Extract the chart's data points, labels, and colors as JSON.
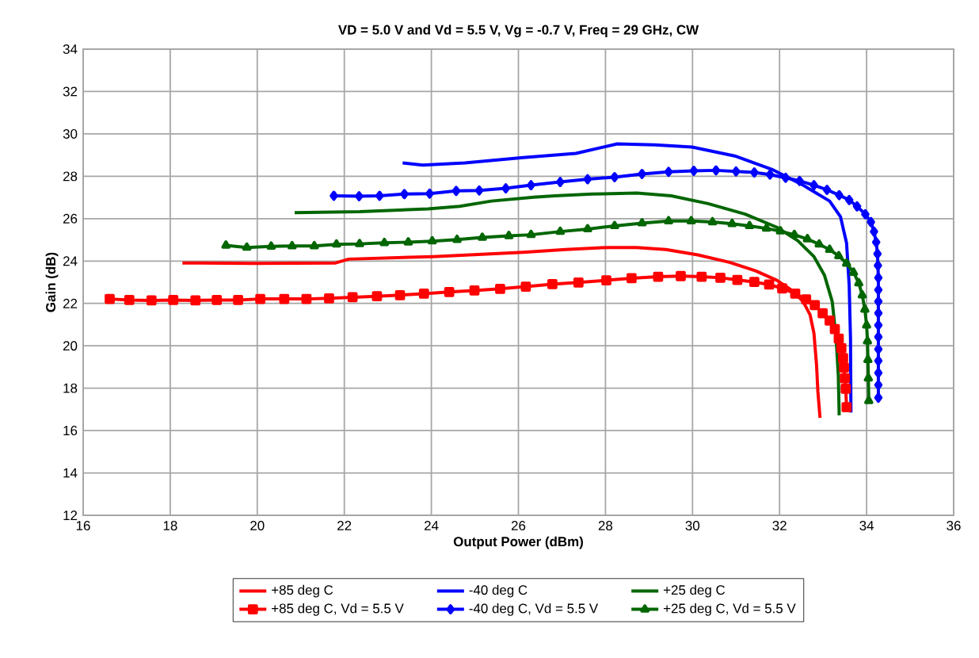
{
  "chart_data": {
    "type": "line",
    "title": "VD = 5.0 V and Vd = 5.5 V, Vg = -0.7 V, Freq = 29 GHz, CW",
    "xlabel": "Output Power (dBm)",
    "ylabel": "Gain (dB)",
    "xlim": [
      16,
      36
    ],
    "ylim": [
      12,
      34
    ],
    "xticks": [
      16,
      18,
      20,
      22,
      24,
      26,
      28,
      30,
      32,
      34,
      36
    ],
    "yticks": [
      12,
      14,
      16,
      18,
      20,
      22,
      24,
      26,
      28,
      30,
      32,
      34
    ],
    "grid": true,
    "legend": "bottom",
    "line_style": "solid",
    "series": [
      {
        "name": "+85 deg C",
        "color": "#ff0000",
        "marker": "none",
        "x": [
          18.28,
          19.92,
          21.8,
          22.1,
          24.04,
          26.11,
          27.08,
          28.05,
          28.72,
          29.39,
          30.12,
          30.85,
          31.45,
          31.94,
          32.3,
          32.54,
          32.7,
          32.79,
          32.85,
          32.88,
          32.93
        ],
        "values": [
          23.91,
          23.89,
          23.91,
          24.09,
          24.21,
          24.41,
          24.54,
          24.64,
          24.64,
          24.54,
          24.29,
          23.94,
          23.54,
          23.09,
          22.59,
          22.09,
          21.47,
          20.59,
          19.09,
          17.85,
          16.6
        ]
      },
      {
        "name": "-40 deg C",
        "color": "#0000ff",
        "marker": "none",
        "x": [
          23.34,
          23.8,
          24.77,
          26.11,
          27.32,
          28.27,
          29.14,
          29.99,
          30.97,
          31.82,
          32.54,
          33.15,
          33.4,
          33.54,
          33.6,
          33.63,
          33.64
        ],
        "values": [
          28.63,
          28.53,
          28.63,
          28.88,
          29.08,
          29.53,
          29.48,
          29.38,
          28.96,
          28.33,
          27.58,
          26.83,
          26.09,
          24.84,
          22.84,
          20.34,
          16.85
        ]
      },
      {
        "name": "+25 deg C",
        "color": "#006600",
        "marker": "none",
        "x": [
          20.86,
          22.35,
          23.92,
          24.65,
          25.38,
          26.35,
          26.84,
          27.69,
          28.72,
          29.51,
          30.36,
          31.21,
          31.94,
          32.42,
          32.79,
          33.03,
          33.21,
          33.3,
          33.35,
          33.37
        ],
        "values": [
          26.28,
          26.33,
          26.46,
          26.58,
          26.83,
          27.01,
          27.08,
          27.16,
          27.21,
          27.08,
          26.71,
          26.21,
          25.59,
          24.96,
          24.21,
          23.34,
          22.09,
          20.34,
          18.6,
          16.72
        ]
      },
      {
        "name": "+85 deg C, Vd = 5.5 V",
        "color": "#ff0000",
        "marker": "square",
        "x": [
          16.61,
          17.06,
          17.57,
          18.07,
          18.58,
          19.07,
          19.56,
          20.07,
          20.62,
          21.13,
          21.65,
          22.19,
          22.75,
          23.28,
          23.83,
          24.41,
          24.99,
          25.58,
          26.17,
          26.78,
          27.38,
          28.02,
          28.6,
          29.21,
          29.73,
          30.21,
          30.64,
          31.03,
          31.42,
          31.76,
          32.06,
          32.36,
          32.61,
          32.81,
          32.99,
          33.15,
          33.27,
          33.36,
          33.42,
          33.46,
          33.48,
          33.5,
          33.52,
          33.54
        ],
        "values": [
          22.21,
          22.16,
          22.14,
          22.16,
          22.14,
          22.16,
          22.16,
          22.21,
          22.21,
          22.21,
          22.24,
          22.29,
          22.34,
          22.39,
          22.46,
          22.54,
          22.61,
          22.69,
          22.79,
          22.91,
          22.99,
          23.09,
          23.19,
          23.26,
          23.29,
          23.26,
          23.21,
          23.11,
          23.01,
          22.89,
          22.71,
          22.46,
          22.19,
          21.92,
          21.54,
          21.19,
          20.79,
          20.34,
          19.89,
          19.42,
          18.97,
          18.47,
          17.97,
          17.1
        ]
      },
      {
        "name": "-40 deg C, Vd = 5.5 V",
        "color": "#0000ff",
        "marker": "diamond",
        "x": [
          21.76,
          22.34,
          22.81,
          23.38,
          23.96,
          24.57,
          25.1,
          25.71,
          26.29,
          26.96,
          27.59,
          28.21,
          28.84,
          29.45,
          30.03,
          30.54,
          31.0,
          31.42,
          31.78,
          32.14,
          32.46,
          32.79,
          33.09,
          33.37,
          33.6,
          33.78,
          33.97,
          34.1,
          34.17,
          34.22,
          34.25,
          34.26,
          34.27,
          34.27,
          34.27,
          34.27,
          34.27,
          34.27,
          34.27,
          34.27,
          34.27,
          34.27,
          34.27
        ],
        "values": [
          27.08,
          27.06,
          27.08,
          27.16,
          27.18,
          27.31,
          27.33,
          27.43,
          27.58,
          27.73,
          27.86,
          27.96,
          28.11,
          28.21,
          28.26,
          28.28,
          28.23,
          28.18,
          28.08,
          27.93,
          27.78,
          27.58,
          27.36,
          27.11,
          26.88,
          26.58,
          26.21,
          25.84,
          25.39,
          24.89,
          24.34,
          23.79,
          23.21,
          22.64,
          22.09,
          21.54,
          20.97,
          20.42,
          19.84,
          19.29,
          18.72,
          18.15,
          17.55
        ]
      },
      {
        "name": "+25 deg C, Vd = 5.5 V",
        "color": "#006600",
        "marker": "triangle",
        "x": [
          19.28,
          19.76,
          20.32,
          20.8,
          21.31,
          21.82,
          22.35,
          22.92,
          23.47,
          24.02,
          24.59,
          25.17,
          25.78,
          26.29,
          26.96,
          27.59,
          28.21,
          28.84,
          29.45,
          29.97,
          30.46,
          30.91,
          31.31,
          31.7,
          32.02,
          32.34,
          32.64,
          32.91,
          33.15,
          33.36,
          33.54,
          33.7,
          33.82,
          33.9,
          33.96,
          34.0,
          34.02,
          34.03,
          34.04,
          34.05
        ],
        "values": [
          24.74,
          24.64,
          24.69,
          24.71,
          24.71,
          24.79,
          24.81,
          24.86,
          24.89,
          24.94,
          25.01,
          25.11,
          25.19,
          25.24,
          25.39,
          25.51,
          25.66,
          25.79,
          25.89,
          25.89,
          25.84,
          25.76,
          25.66,
          25.54,
          25.41,
          25.24,
          25.04,
          24.79,
          24.54,
          24.24,
          23.89,
          23.46,
          22.96,
          22.39,
          21.72,
          20.97,
          20.22,
          19.34,
          18.47,
          17.4
        ]
      }
    ]
  }
}
